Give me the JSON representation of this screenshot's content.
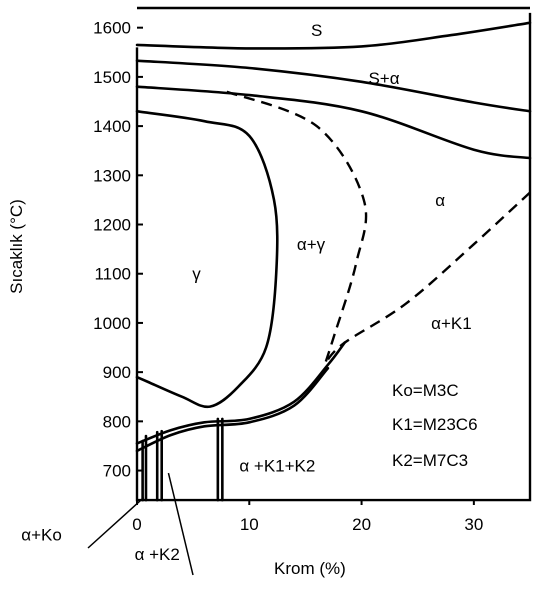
{
  "chart_data": {
    "type": "phase-diagram",
    "xlabel": "Krom (%)",
    "ylabel": "Sıcaklık (°C)",
    "xlim": [
      0,
      35
    ],
    "ylim": [
      630,
      1640
    ],
    "x_ticks": [
      "0",
      "10",
      "20",
      "30"
    ],
    "x_tick_values": [
      0,
      10,
      20,
      30
    ],
    "y_ticks": [
      "700",
      "800",
      "900",
      "1000",
      "1100",
      "1200",
      "1300",
      "1400",
      "1500",
      "1600"
    ],
    "y_tick_values": [
      700,
      800,
      900,
      1000,
      1100,
      1200,
      1300,
      1400,
      1500,
      1600
    ],
    "legend_lines": [
      "Ko=M3C",
      "K1=M23C6",
      "K2=M7C3"
    ],
    "regions": [
      {
        "label": "S",
        "x": 16,
        "y": 1595
      },
      {
        "label": "S+α",
        "x": 22,
        "y": 1498
      },
      {
        "label": "α",
        "x": 27,
        "y": 1250
      },
      {
        "label": "α+γ",
        "x": 15.5,
        "y": 1160
      },
      {
        "label": "γ",
        "x": 5.3,
        "y": 1100
      },
      {
        "label": "α+K1",
        "x": 28,
        "y": 1000
      },
      {
        "label": "α +K1+K2",
        "x": 12.5,
        "y": 710
      },
      {
        "label": "α+Ko",
        "x": -8.5,
        "y": 570
      },
      {
        "label": "α +K2",
        "x": 1.8,
        "y": 530
      }
    ],
    "curves": [
      {
        "style": "solid",
        "points": [
          [
            0,
            1565
          ],
          [
            10,
            1558
          ],
          [
            20,
            1562
          ],
          [
            28,
            1585
          ],
          [
            35,
            1610
          ]
        ]
      },
      {
        "style": "solid",
        "points": [
          [
            0,
            1533
          ],
          [
            10,
            1518
          ],
          [
            20,
            1490
          ],
          [
            30,
            1448
          ],
          [
            35,
            1430
          ]
        ]
      },
      {
        "style": "solid",
        "points": [
          [
            0,
            1480
          ],
          [
            10,
            1463
          ],
          [
            20,
            1430
          ],
          [
            30,
            1352
          ],
          [
            35,
            1335
          ]
        ]
      },
      {
        "style": "solid",
        "points": [
          [
            0,
            1430
          ],
          [
            6,
            1410
          ],
          [
            10,
            1380
          ],
          [
            12.2,
            1250
          ],
          [
            12.4,
            1100
          ],
          [
            11.5,
            950
          ],
          [
            9,
            870
          ],
          [
            6.5,
            830
          ],
          [
            4,
            850
          ],
          [
            1,
            880
          ],
          [
            0,
            890
          ]
        ]
      },
      {
        "style": "dashed",
        "points": [
          [
            8,
            1470
          ],
          [
            16,
            1400
          ],
          [
            20.2,
            1250
          ],
          [
            19.5,
            1120
          ],
          [
            17.5,
            970
          ],
          [
            16.8,
            920
          ]
        ]
      },
      {
        "style": "dashed",
        "points": [
          [
            35,
            1265
          ],
          [
            30,
            1160
          ],
          [
            24,
            1040
          ],
          [
            18.5,
            960
          ],
          [
            16.8,
            920
          ]
        ]
      },
      {
        "style": "solid",
        "points": [
          [
            0,
            755
          ],
          [
            3,
            782
          ],
          [
            6,
            798
          ],
          [
            10,
            805
          ],
          [
            14,
            840
          ],
          [
            17,
            915
          ],
          [
            18.5,
            960
          ]
        ]
      },
      {
        "style": "solid",
        "points": [
          [
            0,
            740
          ],
          [
            3,
            772
          ],
          [
            6,
            790
          ],
          [
            10,
            798
          ],
          [
            14,
            832
          ],
          [
            17,
            908
          ]
        ]
      },
      {
        "style": "solid",
        "points": [
          [
            0,
            1560
          ],
          [
            0,
            640
          ],
          [
            35,
            640
          ],
          [
            35,
            1630
          ]
        ]
      }
    ],
    "vertical_lines": [
      {
        "x": 0.5,
        "y": [
          640,
          760
        ]
      },
      {
        "x": 0.8,
        "y": [
          640,
          770
        ]
      },
      {
        "x": 1.8,
        "y": [
          640,
          778
        ]
      },
      {
        "x": 2.2,
        "y": [
          640,
          780
        ]
      },
      {
        "x": 7.2,
        "y": [
          640,
          805
        ]
      },
      {
        "x": 7.6,
        "y": [
          640,
          805
        ]
      }
    ],
    "grid": false
  }
}
